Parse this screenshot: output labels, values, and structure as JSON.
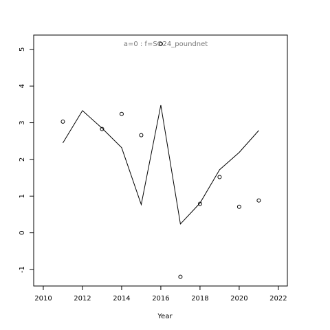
{
  "chart_data": {
    "type": "line",
    "title": "a=0  :  f=SO24_poundnet",
    "x_label": "Year",
    "x": [
      2011,
      2012,
      2013,
      2014,
      2015,
      2016,
      2017,
      2018,
      2019,
      2020,
      2021
    ],
    "series": [
      {
        "name": "line",
        "color": "#000000",
        "style": "line",
        "values": [
          2.45,
          3.33,
          2.85,
          2.32,
          0.77,
          3.48,
          0.24,
          0.81,
          1.72,
          2.19,
          2.79
        ]
      },
      {
        "name": "points",
        "color": "#000000",
        "style": "points",
        "values": [
          3.03,
          null,
          2.83,
          3.24,
          2.66,
          5.15,
          -1.2,
          0.79,
          1.52,
          0.71,
          0.88
        ]
      }
    ],
    "xlim": [
      2009.51,
      2022.46
    ],
    "xticks": [
      2010,
      2012,
      2014,
      2016,
      2018,
      2020,
      2022
    ],
    "ylim": [
      -1.45,
      5.39
    ],
    "yticks": [
      -1,
      0,
      1,
      2,
      3,
      4,
      5
    ]
  }
}
